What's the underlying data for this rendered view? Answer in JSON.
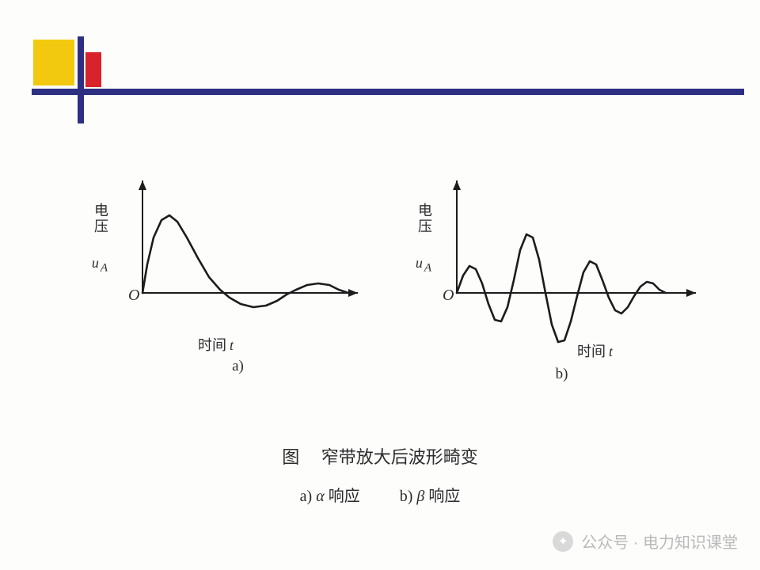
{
  "decor": {
    "yellow": "#f2c90f",
    "navy": "#2d2f82",
    "red": "#d8232a"
  },
  "axis": {
    "ylabel_prefix": "电压",
    "yvar": "u",
    "ysub": "A",
    "origin": "O",
    "xlabel_prefix": "时间",
    "xvar": "t",
    "stroke": "#1c1c1c",
    "stroke_width": 2
  },
  "chart_a": {
    "sub": "a)",
    "curve_stroke": "#1c1c1c",
    "curve_width": 2.6,
    "points": [
      [
        0,
        0
      ],
      [
        6,
        36
      ],
      [
        14,
        70
      ],
      [
        24,
        92
      ],
      [
        34,
        98
      ],
      [
        44,
        90
      ],
      [
        56,
        70
      ],
      [
        70,
        44
      ],
      [
        84,
        20
      ],
      [
        98,
        4
      ],
      [
        110,
        -6
      ],
      [
        124,
        -14
      ],
      [
        140,
        -18
      ],
      [
        156,
        -16
      ],
      [
        170,
        -10
      ],
      [
        182,
        -2
      ],
      [
        194,
        4
      ],
      [
        208,
        10
      ],
      [
        222,
        12
      ],
      [
        236,
        10
      ],
      [
        248,
        4
      ],
      [
        260,
        0
      ]
    ]
  },
  "chart_b": {
    "sub": "b)",
    "curve_stroke": "#1c1c1c",
    "curve_width": 2.6,
    "points": [
      [
        0,
        0
      ],
      [
        8,
        22
      ],
      [
        16,
        34
      ],
      [
        24,
        30
      ],
      [
        32,
        12
      ],
      [
        40,
        -14
      ],
      [
        48,
        -34
      ],
      [
        56,
        -36
      ],
      [
        64,
        -18
      ],
      [
        72,
        16
      ],
      [
        80,
        54
      ],
      [
        88,
        74
      ],
      [
        96,
        70
      ],
      [
        104,
        42
      ],
      [
        112,
        0
      ],
      [
        120,
        -40
      ],
      [
        128,
        -62
      ],
      [
        136,
        -60
      ],
      [
        144,
        -36
      ],
      [
        152,
        -4
      ],
      [
        160,
        26
      ],
      [
        168,
        40
      ],
      [
        176,
        36
      ],
      [
        184,
        16
      ],
      [
        192,
        -6
      ],
      [
        200,
        -22
      ],
      [
        208,
        -26
      ],
      [
        216,
        -18
      ],
      [
        224,
        -4
      ],
      [
        232,
        8
      ],
      [
        240,
        14
      ],
      [
        248,
        12
      ],
      [
        256,
        4
      ],
      [
        264,
        0
      ]
    ]
  },
  "caption": {
    "prefix": "图",
    "text": "窄带放大后波形畸变"
  },
  "legend": {
    "a": "响应",
    "b": "响应",
    "alpha": "α",
    "beta": "β"
  },
  "watermark": {
    "label": "公众号 · 电力知识课堂",
    "icon": "✦"
  }
}
